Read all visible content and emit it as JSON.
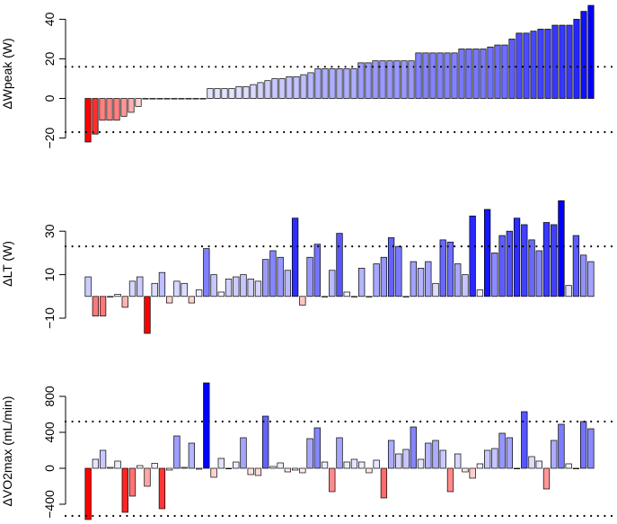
{
  "chart_data": [
    {
      "type": "bar",
      "ylabel": "ΔWpeak (W)",
      "ylim": [
        -22,
        47
      ],
      "yticks": [
        -20,
        0,
        20,
        40
      ],
      "ytick_labels": [
        "−20",
        "0",
        "20",
        "40"
      ],
      "reference_lines": [
        16,
        -17
      ],
      "values": [
        -22,
        -18,
        -11,
        -11,
        -11,
        -9,
        -7,
        -4,
        0,
        0,
        0,
        0,
        0,
        0,
        0,
        0,
        0,
        5,
        5,
        5,
        5,
        6,
        6,
        7,
        8,
        9,
        10,
        10,
        11,
        11,
        12,
        13,
        15,
        15,
        15,
        15,
        15,
        15,
        18,
        18,
        19,
        19,
        19,
        19,
        19,
        19,
        23,
        23,
        23,
        23,
        23,
        23,
        25,
        25,
        25,
        25,
        26,
        27,
        27,
        30,
        33,
        33,
        34,
        35,
        35,
        37,
        37,
        37,
        40,
        44,
        47
      ]
    },
    {
      "type": "bar",
      "ylabel": "ΔLT (W)",
      "ylim": [
        -10,
        40
      ],
      "yticks": [
        -10,
        10,
        30
      ],
      "ytick_labels": [
        "−10",
        "10",
        "30"
      ],
      "reference_lines": [
        23
      ],
      "values": [
        9,
        -9,
        -9,
        0,
        1,
        -5,
        7,
        9,
        -17,
        6,
        11,
        -3,
        7,
        6,
        -3,
        3,
        22,
        10,
        2,
        8,
        9,
        10,
        8,
        7,
        17,
        21,
        18,
        12,
        36,
        -4,
        18,
        24,
        0,
        12,
        29,
        2,
        0,
        13,
        0,
        15,
        18,
        27,
        23,
        0,
        16,
        13,
        16,
        6,
        26,
        25,
        15,
        10,
        37,
        3,
        40,
        20,
        28,
        30,
        36,
        33,
        26,
        21,
        34,
        33,
        44,
        5,
        28,
        19,
        16
      ]
    },
    {
      "type": "bar",
      "ylabel": "ΔVO2max (mL/min)",
      "ylim": [
        -570,
        950
      ],
      "yticks": [
        -400,
        0,
        400,
        800
      ],
      "ytick_labels": [
        "−400",
        "0",
        "400",
        "800"
      ],
      "reference_lines": [
        520,
        -530
      ],
      "values": [
        -570,
        100,
        200,
        10,
        80,
        -490,
        -310,
        30,
        -200,
        55,
        -450,
        -20,
        360,
        10,
        280,
        -10,
        950,
        -100,
        110,
        0,
        70,
        340,
        -70,
        -80,
        580,
        20,
        60,
        -40,
        -20,
        -50,
        330,
        450,
        70,
        -260,
        340,
        70,
        100,
        70,
        -50,
        90,
        -330,
        310,
        160,
        210,
        460,
        100,
        280,
        310,
        200,
        -260,
        160,
        -40,
        -110,
        50,
        200,
        220,
        390,
        340,
        0,
        630,
        130,
        80,
        -230,
        310,
        490,
        50,
        0,
        520,
        440
      ]
    }
  ]
}
